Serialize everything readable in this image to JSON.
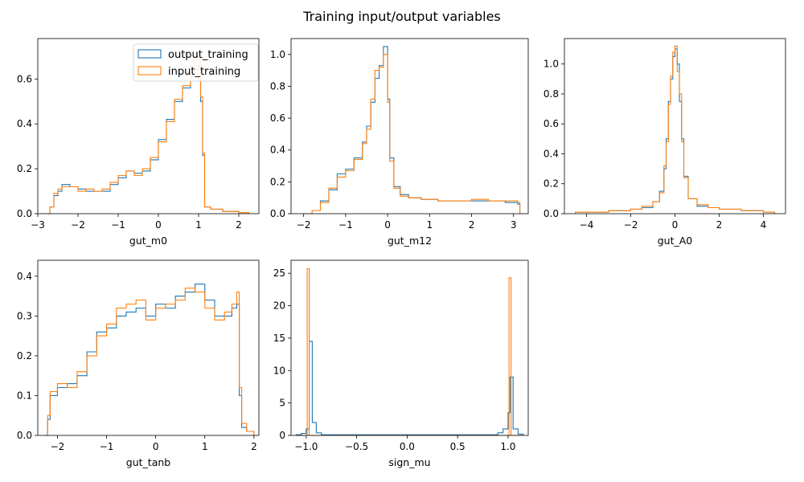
{
  "figure": {
    "title": "Training input/output variables",
    "colors": {
      "output_training": "#1f77b4",
      "input_training": "#ff7f0e"
    }
  },
  "chart_data": [
    {
      "type": "step-histogram",
      "xlabel": "gut_m0",
      "xlim": [
        -3,
        2.5
      ],
      "ylim": [
        0,
        0.78
      ],
      "xticks": [
        -3,
        -2,
        -1,
        0,
        1,
        2
      ],
      "yticks": [
        0.0,
        0.2,
        0.4,
        0.6
      ],
      "grid": false,
      "legend": {
        "placement": "upper right",
        "entries": [
          "output_training",
          "input_training"
        ]
      },
      "series": [
        {
          "name": "output_training",
          "color": "#1f77b4",
          "points": [
            [
              -2.75,
              0
            ],
            [
              -2.7,
              0.03
            ],
            [
              -2.6,
              0.08
            ],
            [
              -2.5,
              0.1
            ],
            [
              -2.4,
              0.13
            ],
            [
              -2.2,
              0.12
            ],
            [
              -2.0,
              0.11
            ],
            [
              -1.8,
              0.1
            ],
            [
              -1.6,
              0.1
            ],
            [
              -1.4,
              0.1
            ],
            [
              -1.2,
              0.13
            ],
            [
              -1.0,
              0.16
            ],
            [
              -0.8,
              0.19
            ],
            [
              -0.6,
              0.18
            ],
            [
              -0.4,
              0.19
            ],
            [
              -0.2,
              0.24
            ],
            [
              0.0,
              0.33
            ],
            [
              0.2,
              0.42
            ],
            [
              0.4,
              0.5
            ],
            [
              0.6,
              0.56
            ],
            [
              0.8,
              0.62
            ],
            [
              0.9,
              0.64
            ],
            [
              1.0,
              0.66
            ],
            [
              1.05,
              0.5
            ],
            [
              1.1,
              0.26
            ],
            [
              1.15,
              0.03
            ],
            [
              1.3,
              0.02
            ],
            [
              1.6,
              0.01
            ],
            [
              2.0,
              0.005
            ],
            [
              2.25,
              0
            ]
          ]
        },
        {
          "name": "input_training",
          "color": "#ff7f0e",
          "points": [
            [
              -2.75,
              0
            ],
            [
              -2.7,
              0.03
            ],
            [
              -2.6,
              0.09
            ],
            [
              -2.5,
              0.11
            ],
            [
              -2.4,
              0.12
            ],
            [
              -2.2,
              0.12
            ],
            [
              -2.0,
              0.1
            ],
            [
              -1.8,
              0.11
            ],
            [
              -1.6,
              0.1
            ],
            [
              -1.4,
              0.11
            ],
            [
              -1.2,
              0.14
            ],
            [
              -1.0,
              0.17
            ],
            [
              -0.8,
              0.19
            ],
            [
              -0.6,
              0.17
            ],
            [
              -0.4,
              0.2
            ],
            [
              -0.2,
              0.25
            ],
            [
              0.0,
              0.32
            ],
            [
              0.2,
              0.41
            ],
            [
              0.4,
              0.51
            ],
            [
              0.6,
              0.57
            ],
            [
              0.8,
              0.63
            ],
            [
              0.9,
              0.7
            ],
            [
              1.0,
              0.72
            ],
            [
              1.05,
              0.52
            ],
            [
              1.1,
              0.27
            ],
            [
              1.15,
              0.03
            ],
            [
              1.3,
              0.02
            ],
            [
              1.6,
              0.01
            ],
            [
              2.0,
              0.005
            ],
            [
              2.25,
              0
            ]
          ]
        }
      ]
    },
    {
      "type": "step-histogram",
      "xlabel": "gut_m12",
      "xlim": [
        -2.3,
        3.35
      ],
      "ylim": [
        0,
        1.1
      ],
      "xticks": [
        -2,
        -1,
        0,
        1,
        2,
        3
      ],
      "yticks": [
        0.0,
        0.2,
        0.4,
        0.6,
        0.8,
        1.0
      ],
      "grid": false,
      "series": [
        {
          "name": "output_training",
          "color": "#1f77b4",
          "points": [
            [
              -2.0,
              0
            ],
            [
              -1.8,
              0.02
            ],
            [
              -1.6,
              0.08
            ],
            [
              -1.4,
              0.15
            ],
            [
              -1.2,
              0.25
            ],
            [
              -1.0,
              0.28
            ],
            [
              -0.8,
              0.35
            ],
            [
              -0.6,
              0.45
            ],
            [
              -0.5,
              0.55
            ],
            [
              -0.4,
              0.7
            ],
            [
              -0.3,
              0.85
            ],
            [
              -0.2,
              0.93
            ],
            [
              -0.1,
              1.05
            ],
            [
              0.0,
              0.72
            ],
            [
              0.05,
              0.35
            ],
            [
              0.15,
              0.17
            ],
            [
              0.3,
              0.12
            ],
            [
              0.5,
              0.1
            ],
            [
              0.8,
              0.09
            ],
            [
              1.2,
              0.08
            ],
            [
              1.6,
              0.08
            ],
            [
              2.0,
              0.08
            ],
            [
              2.4,
              0.08
            ],
            [
              2.8,
              0.07
            ],
            [
              3.1,
              0.06
            ],
            [
              3.15,
              0
            ]
          ]
        },
        {
          "name": "input_training",
          "color": "#ff7f0e",
          "points": [
            [
              -2.0,
              0
            ],
            [
              -1.8,
              0.02
            ],
            [
              -1.6,
              0.07
            ],
            [
              -1.4,
              0.16
            ],
            [
              -1.2,
              0.23
            ],
            [
              -1.0,
              0.27
            ],
            [
              -0.8,
              0.34
            ],
            [
              -0.6,
              0.44
            ],
            [
              -0.5,
              0.53
            ],
            [
              -0.4,
              0.72
            ],
            [
              -0.3,
              0.9
            ],
            [
              -0.2,
              0.92
            ],
            [
              -0.1,
              1.0
            ],
            [
              0.0,
              0.7
            ],
            [
              0.05,
              0.33
            ],
            [
              0.15,
              0.16
            ],
            [
              0.3,
              0.11
            ],
            [
              0.5,
              0.1
            ],
            [
              0.8,
              0.09
            ],
            [
              1.2,
              0.08
            ],
            [
              1.6,
              0.08
            ],
            [
              2.0,
              0.09
            ],
            [
              2.4,
              0.08
            ],
            [
              2.8,
              0.08
            ],
            [
              3.1,
              0.07
            ],
            [
              3.15,
              0
            ]
          ]
        }
      ]
    },
    {
      "type": "step-histogram",
      "xlabel": "gut_A0",
      "xlim": [
        -5.0,
        5.0
      ],
      "ylim": [
        0,
        1.17
      ],
      "xticks": [
        -4,
        -2,
        0,
        2,
        4
      ],
      "yticks": [
        0.0,
        0.2,
        0.4,
        0.6,
        0.8,
        1.0
      ],
      "grid": false,
      "series": [
        {
          "name": "output_training",
          "color": "#1f77b4",
          "points": [
            [
              -4.5,
              0.01
            ],
            [
              -4.0,
              0.01
            ],
            [
              -3.0,
              0.02
            ],
            [
              -2.0,
              0.03
            ],
            [
              -1.5,
              0.04
            ],
            [
              -1.0,
              0.08
            ],
            [
              -0.7,
              0.15
            ],
            [
              -0.5,
              0.3
            ],
            [
              -0.4,
              0.5
            ],
            [
              -0.3,
              0.75
            ],
            [
              -0.2,
              0.9
            ],
            [
              -0.1,
              1.05
            ],
            [
              0.0,
              1.1
            ],
            [
              0.1,
              1.0
            ],
            [
              0.2,
              0.75
            ],
            [
              0.3,
              0.5
            ],
            [
              0.4,
              0.25
            ],
            [
              0.6,
              0.1
            ],
            [
              1.0,
              0.05
            ],
            [
              1.5,
              0.04
            ],
            [
              2.0,
              0.03
            ],
            [
              3.0,
              0.02
            ],
            [
              4.0,
              0.01
            ],
            [
              4.5,
              0.01
            ]
          ]
        },
        {
          "name": "input_training",
          "color": "#ff7f0e",
          "points": [
            [
              -4.5,
              0.01
            ],
            [
              -4.0,
              0.01
            ],
            [
              -3.0,
              0.02
            ],
            [
              -2.0,
              0.03
            ],
            [
              -1.5,
              0.05
            ],
            [
              -1.0,
              0.08
            ],
            [
              -0.7,
              0.14
            ],
            [
              -0.5,
              0.32
            ],
            [
              -0.4,
              0.48
            ],
            [
              -0.3,
              0.73
            ],
            [
              -0.2,
              0.92
            ],
            [
              -0.1,
              1.08
            ],
            [
              0.0,
              1.12
            ],
            [
              0.1,
              0.95
            ],
            [
              0.2,
              0.8
            ],
            [
              0.3,
              0.48
            ],
            [
              0.4,
              0.24
            ],
            [
              0.6,
              0.1
            ],
            [
              1.0,
              0.06
            ],
            [
              1.5,
              0.04
            ],
            [
              2.0,
              0.03
            ],
            [
              3.0,
              0.02
            ],
            [
              4.0,
              0.01
            ],
            [
              4.5,
              0.01
            ]
          ]
        }
      ]
    },
    {
      "type": "step-histogram",
      "xlabel": "gut_tanb",
      "xlim": [
        -2.4,
        2.1
      ],
      "ylim": [
        0,
        0.44
      ],
      "xticks": [
        -2,
        -1,
        0,
        1,
        2
      ],
      "yticks": [
        0.0,
        0.1,
        0.2,
        0.3,
        0.4
      ],
      "grid": false,
      "series": [
        {
          "name": "output_training",
          "color": "#1f77b4",
          "points": [
            [
              -2.25,
              0
            ],
            [
              -2.2,
              0.04
            ],
            [
              -2.15,
              0.1
            ],
            [
              -2.0,
              0.12
            ],
            [
              -1.8,
              0.13
            ],
            [
              -1.6,
              0.15
            ],
            [
              -1.4,
              0.21
            ],
            [
              -1.2,
              0.26
            ],
            [
              -1.0,
              0.27
            ],
            [
              -0.8,
              0.3
            ],
            [
              -0.6,
              0.31
            ],
            [
              -0.4,
              0.32
            ],
            [
              -0.2,
              0.3
            ],
            [
              0.0,
              0.33
            ],
            [
              0.2,
              0.32
            ],
            [
              0.4,
              0.35
            ],
            [
              0.6,
              0.36
            ],
            [
              0.8,
              0.38
            ],
            [
              1.0,
              0.34
            ],
            [
              1.2,
              0.3
            ],
            [
              1.4,
              0.3
            ],
            [
              1.55,
              0.32
            ],
            [
              1.65,
              0.33
            ],
            [
              1.7,
              0.1
            ],
            [
              1.75,
              0.02
            ],
            [
              1.85,
              0.01
            ],
            [
              2.0,
              0
            ]
          ]
        },
        {
          "name": "input_training",
          "color": "#ff7f0e",
          "points": [
            [
              -2.25,
              0
            ],
            [
              -2.2,
              0.05
            ],
            [
              -2.15,
              0.11
            ],
            [
              -2.0,
              0.13
            ],
            [
              -1.8,
              0.12
            ],
            [
              -1.6,
              0.16
            ],
            [
              -1.4,
              0.2
            ],
            [
              -1.2,
              0.25
            ],
            [
              -1.0,
              0.28
            ],
            [
              -0.8,
              0.32
            ],
            [
              -0.6,
              0.33
            ],
            [
              -0.4,
              0.34
            ],
            [
              -0.2,
              0.29
            ],
            [
              0.0,
              0.32
            ],
            [
              0.2,
              0.33
            ],
            [
              0.4,
              0.34
            ],
            [
              0.6,
              0.37
            ],
            [
              0.8,
              0.36
            ],
            [
              1.0,
              0.32
            ],
            [
              1.2,
              0.29
            ],
            [
              1.4,
              0.31
            ],
            [
              1.55,
              0.33
            ],
            [
              1.65,
              0.36
            ],
            [
              1.7,
              0.12
            ],
            [
              1.75,
              0.03
            ],
            [
              1.85,
              0.01
            ],
            [
              2.0,
              0
            ]
          ]
        }
      ]
    },
    {
      "type": "step-histogram",
      "xlabel": "sign_mu",
      "xlim": [
        -1.15,
        1.2
      ],
      "ylim": [
        0,
        27
      ],
      "xticks": [
        -1.0,
        -0.5,
        0.0,
        0.5,
        1.0
      ],
      "yticks": [
        0,
        5,
        10,
        15,
        20,
        25
      ],
      "grid": false,
      "series": [
        {
          "name": "output_training",
          "color": "#1f77b4",
          "points": [
            [
              -1.1,
              0.1
            ],
            [
              -1.05,
              0.3
            ],
            [
              -1.0,
              1.0
            ],
            [
              -0.97,
              14.5
            ],
            [
              -0.94,
              2.0
            ],
            [
              -0.9,
              0.4
            ],
            [
              -0.85,
              0.1
            ],
            [
              0.85,
              0.1
            ],
            [
              0.9,
              0.4
            ],
            [
              0.95,
              1.0
            ],
            [
              1.0,
              3.5
            ],
            [
              1.02,
              9.0
            ],
            [
              1.05,
              1.0
            ],
            [
              1.1,
              0.2
            ],
            [
              1.15,
              0
            ]
          ]
        },
        {
          "name": "input_training",
          "color": "#ff7f0e",
          "points": [
            [
              -1.1,
              0
            ],
            [
              -1.0,
              0
            ],
            [
              -0.99,
              25.7
            ],
            [
              -0.97,
              0
            ],
            [
              1.0,
              0
            ],
            [
              1.01,
              24.3
            ],
            [
              1.03,
              0
            ],
            [
              1.15,
              0
            ]
          ]
        }
      ]
    }
  ]
}
